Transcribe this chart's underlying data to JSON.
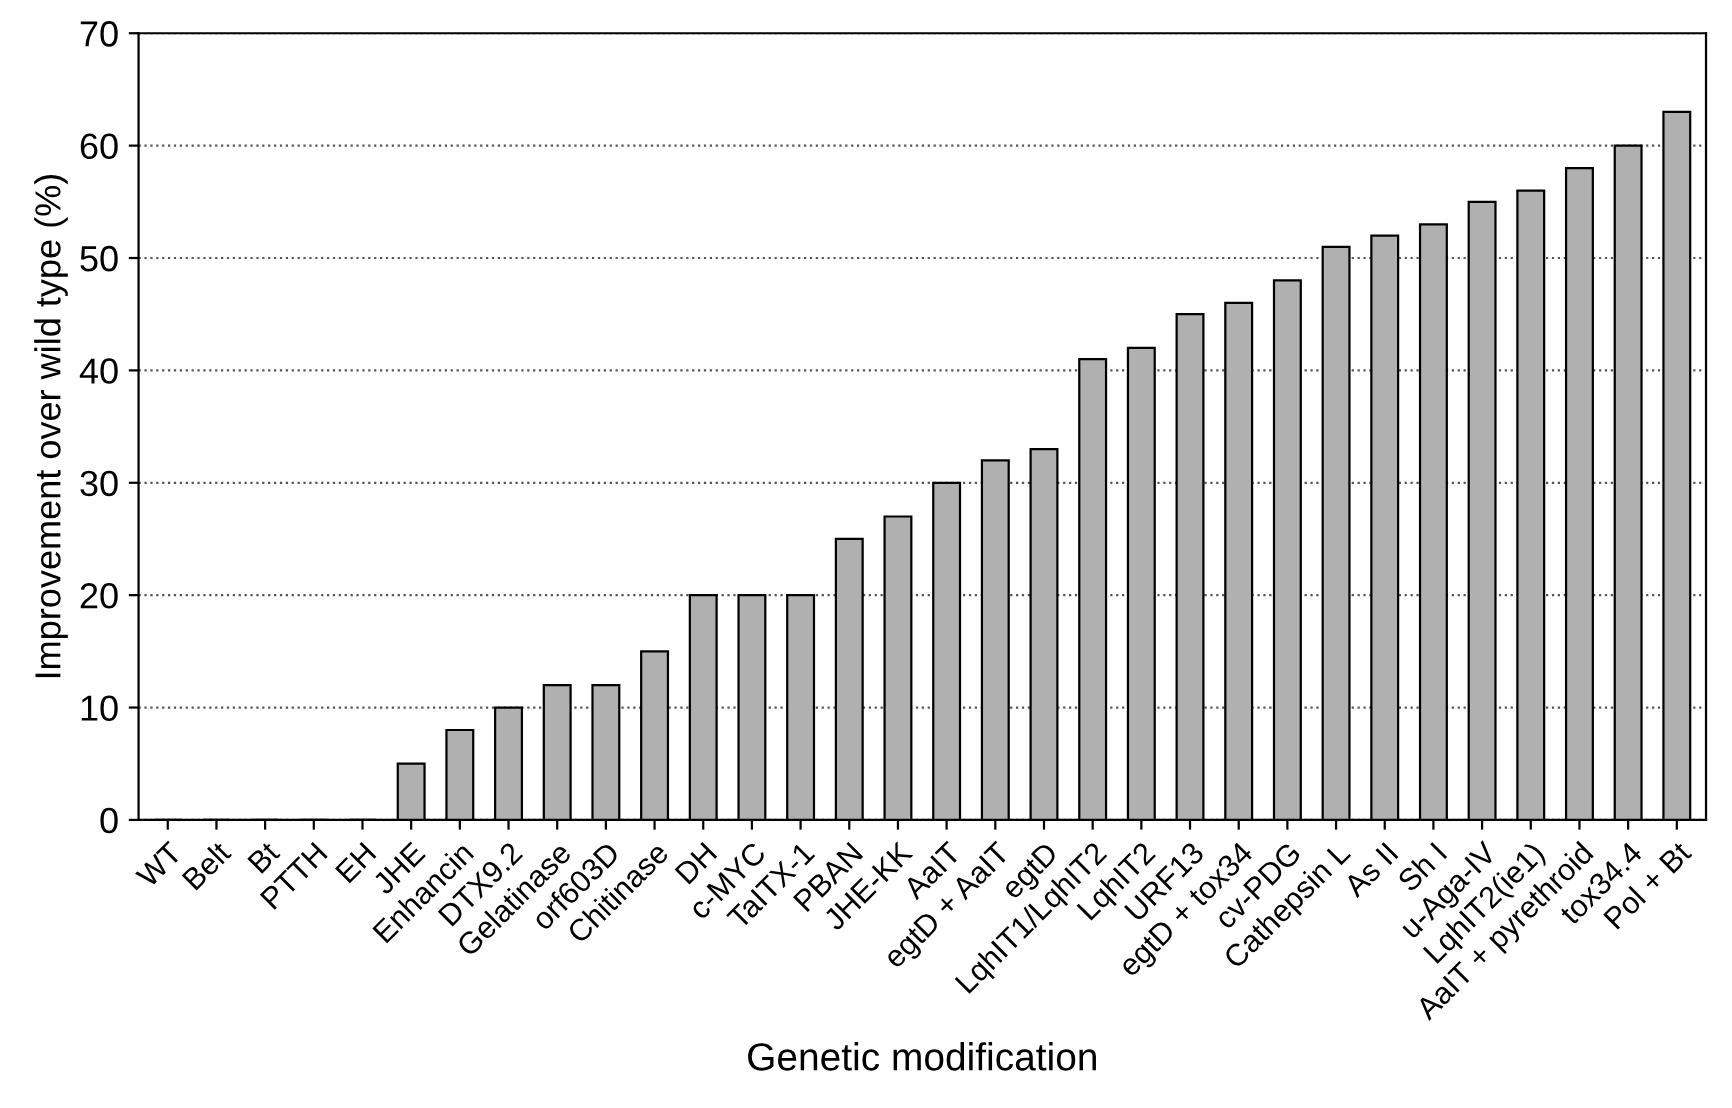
{
  "chart_data": {
    "type": "bar",
    "xlabel": "Genetic modification",
    "ylabel": "Improvement over wild type (%)",
    "categories": [
      "WT",
      "Belt",
      "Bt",
      "PTTH",
      "EH",
      "JHE",
      "Enhancin",
      "DTX9.2",
      "Gelatinase",
      "orf603D",
      "Chitinase",
      "DH",
      "c-MYC",
      "TaITX-1",
      "PBAN",
      "JHE-KK",
      "AaIT",
      "egtD + AaIT",
      "egtD",
      "LqhIT1/LqhIT2",
      "LqhIT2",
      "URF13",
      "egtD + tox34",
      "cv-PDG",
      "Cathepsin L",
      "As II",
      "Sh I",
      "u-Aga-IV",
      "LqhIT2(ie1)",
      "AaIT + pyrethroid",
      "tox34.4",
      "Pol + Bt"
    ],
    "values": [
      0,
      0,
      0,
      0,
      0,
      5,
      8,
      10,
      12,
      12,
      15,
      20,
      20,
      20,
      25,
      27,
      30,
      32,
      33,
      41,
      42,
      45,
      46,
      48,
      51,
      52,
      53,
      55,
      56,
      58,
      60,
      63
    ],
    "color": "#b0b0b0",
    "ylim": [
      0,
      70
    ],
    "yticks": [
      0,
      10,
      20,
      30,
      40,
      50,
      60,
      70
    ],
    "grid": "y"
  }
}
